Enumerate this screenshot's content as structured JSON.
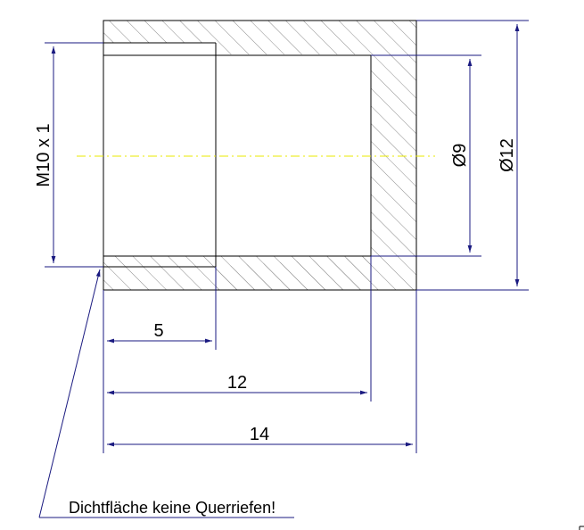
{
  "drawing": {
    "thread_label": "M10 x 1",
    "inner_diameter_label": "Ø9",
    "outer_diameter_label": "Ø12",
    "dimensions": {
      "thread_depth": "5",
      "bore_depth": "12",
      "total_length": "14"
    },
    "note": "Dichtfläche keine Querriefen!"
  },
  "colors": {
    "outline": "#000000",
    "dimension": "#1a1a80",
    "hatch": "#777777",
    "centerline": "#e8e800"
  }
}
